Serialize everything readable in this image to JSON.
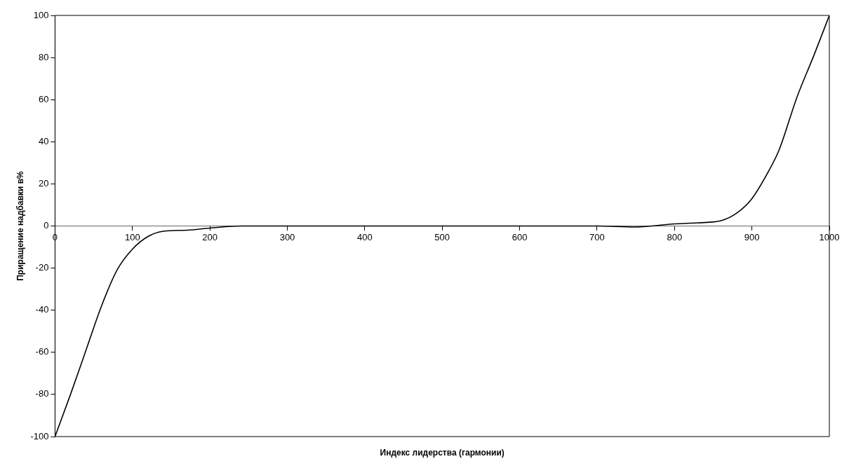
{
  "chart_data": {
    "type": "line",
    "xlabel": "Индекс лидерства (гармонии)",
    "ylabel": "Приращение надбавки в%",
    "series": [
      {
        "color": "#000000",
        "x": [
          0,
          20,
          40,
          60,
          80,
          100,
          120,
          140,
          170,
          200,
          240,
          300,
          400,
          500,
          600,
          700,
          750,
          800,
          830,
          860,
          880,
          900,
          920,
          935,
          958,
          980,
          1000
        ],
        "values": [
          -100,
          -80,
          -59,
          -38,
          -21,
          -11,
          -5,
          -2.5,
          -2,
          -1,
          0,
          0,
          0,
          0,
          0,
          0,
          -0.5,
          1,
          1.5,
          2.5,
          6,
          13,
          25,
          36,
          61,
          81,
          100
        ]
      }
    ],
    "xlim": [
      0,
      1000
    ],
    "xticks": [
      0,
      100,
      200,
      300,
      400,
      500,
      600,
      700,
      800,
      900,
      1000
    ],
    "ylim": [
      -100,
      100
    ],
    "yticks": [
      -100,
      -80,
      -60,
      -40,
      -20,
      0,
      20,
      40,
      60,
      80,
      100
    ],
    "grid": false,
    "legend": false,
    "marker": "none",
    "line_style": "solid"
  }
}
